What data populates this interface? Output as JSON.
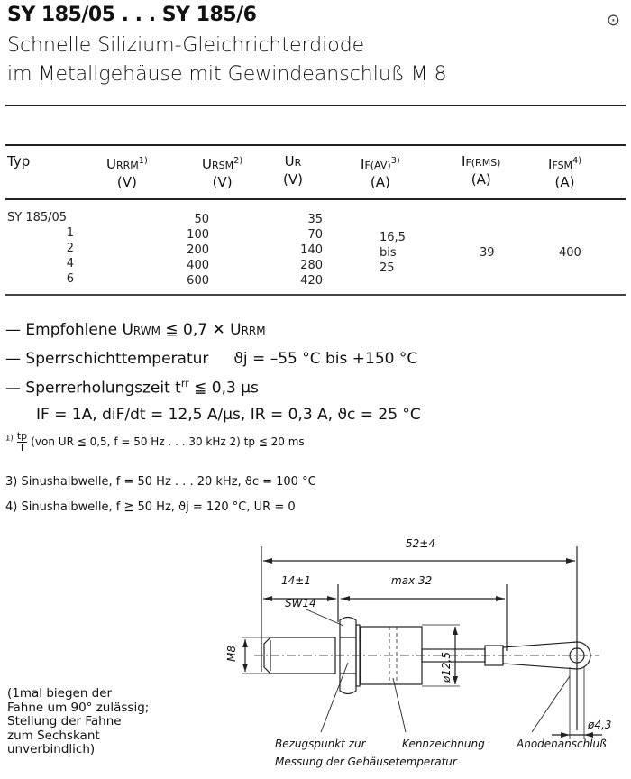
{
  "header": {
    "title": "SY 185/05 . . . SY 185/6",
    "subtitle_line1": "Schnelle Silizium-Gleichrichterdiode",
    "subtitle_line2": "im Metallgehäuse mit Gewindeanschluß M 8",
    "corner_mark": "⊙"
  },
  "table": {
    "columns": [
      {
        "main": "Typ",
        "sub": "",
        "sup": "",
        "unit": ""
      },
      {
        "main": "U",
        "sub": "RRM",
        "sup": "1)",
        "unit": "(V)"
      },
      {
        "main": "U",
        "sub": "RSM",
        "sup": "2)",
        "unit": "(V)"
      },
      {
        "main": "U",
        "sub": "R",
        "sup": "",
        "unit": "(V)"
      },
      {
        "main": "I",
        "sub": "F(AV)",
        "sup": "3)",
        "unit": "(A)"
      },
      {
        "main": "I",
        "sub": "F(RMS)",
        "sup": "",
        "unit": "(A)"
      },
      {
        "main": "I",
        "sub": "FSM",
        "sup": "4)",
        "unit": "(A)"
      }
    ],
    "rows": [
      {
        "typ": "SY 185/05",
        "urrm": "50",
        "ur": "35"
      },
      {
        "typ": "1",
        "urrm": "100",
        "ur": "70"
      },
      {
        "typ": "2",
        "urrm": "200",
        "ur": "140"
      },
      {
        "typ": "4",
        "urrm": "400",
        "ur": "280"
      },
      {
        "typ": "6",
        "urrm": "600",
        "ur": "420"
      }
    ],
    "if_av": [
      "16,5",
      "bis",
      "25"
    ],
    "if_rms": "39",
    "ifsm": "400"
  },
  "notes": {
    "n1": "— Empfohlene U",
    "n1_sub": "RWM",
    "n1_rest": " ≦ 0,7 ✕ U",
    "n1_sub2": "RRM",
    "n2": "— Sperrschichttemperatur",
    "n2_val": "ϑj = –55 °C bis +150 °C",
    "n3": "— Sperrerholungszeit t",
    "n3_sup": "rr",
    "n3_rest": " ≦ 0,3 µs",
    "n4": "IF = 1A, diF/dt = 12,5 A/µs, IR = 0,3 A, ϑc = 25 °C"
  },
  "footnotes": {
    "f1_mark": "1)",
    "f1_num": "tp",
    "f1_den": "T",
    "f1_text": "(von UR ≦ 0,5, f = 50 Hz . . . 30 kHz  2) tp ≦ 20 ms",
    "f3": "3)  Sinushalbwelle, f = 50 Hz . . . 20 kHz,  ϑc = 100 °C",
    "f4": "4)  Sinushalbwelle, f ≧ 50 Hz,  ϑj = 120 °C,  UR = 0"
  },
  "drawing": {
    "dim_total": "52±4",
    "dim_thread": "14±1",
    "dim_max": "max.32",
    "wrench": "SW14",
    "thread": "M8",
    "body_dia": "ø12,5",
    "eye_dia": "ø4,3",
    "label_ref_1": "Bezugspunkt zur",
    "label_ref_2": "Messung  der Gehäusetemperatur",
    "label_mark": "Kennzeichnung",
    "label_anode": "Anodenanschluß"
  },
  "side_note": [
    "(1mal biegen der",
    "Fahne um 90° zulässig;",
    "Stellung der Fahne",
    "zum Sechskant",
    "unverbindlich)"
  ]
}
